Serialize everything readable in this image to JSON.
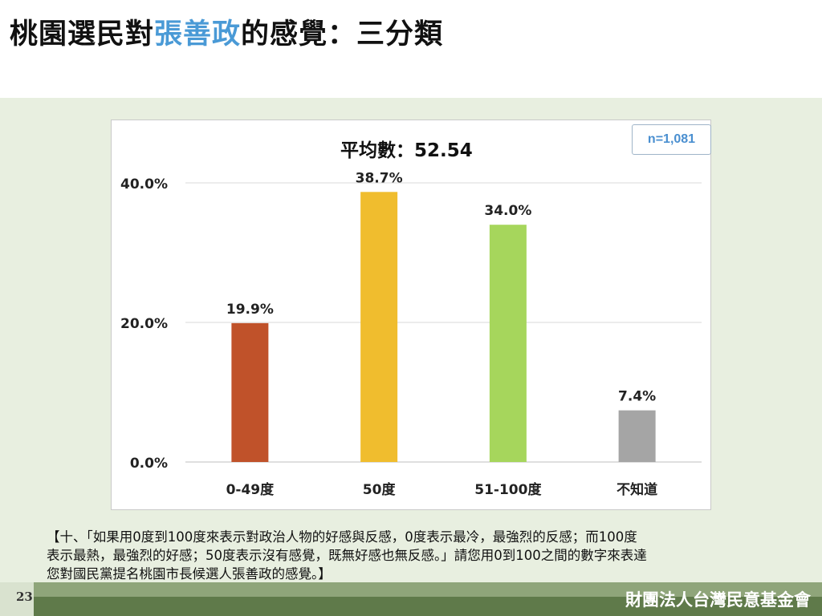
{
  "header": {
    "title_prefix": "桃園選民對",
    "title_highlight": "張善政",
    "title_suffix": "的感覺：三分類"
  },
  "chart_data": {
    "type": "bar",
    "title": "平均數：52.54",
    "sample_size": "n=1,081",
    "categories": [
      "0-49度",
      "50度",
      "51-100度",
      "不知道"
    ],
    "values": [
      19.9,
      38.7,
      34.0,
      7.4
    ],
    "data_labels": [
      "19.9%",
      "38.7%",
      "34.0%",
      "7.4%"
    ],
    "colors": [
      "#c0522a",
      "#f0bd2e",
      "#a6d65c",
      "#a5a5a5"
    ],
    "ylim": [
      0,
      40
    ],
    "yticks": [
      0,
      20,
      40
    ],
    "ytick_labels": [
      "0.0%",
      "20.0%",
      "40.0%"
    ],
    "grid": true
  },
  "footnote": {
    "lines": [
      "【十、「如果用0度到100度來表示對政治人物的好感與反感，0度表示最冷，最強烈的反感；而100度",
      "表示最熱，最強烈的好感；50度表示沒有感覺，既無好感也無反感。」請您用0到100之間的數字來表達",
      "您對國民黨提名桃園市長候選人張善政的感覺。】"
    ]
  },
  "footer": {
    "page_number": "23",
    "organization": "財團法人台灣民意基金會"
  }
}
